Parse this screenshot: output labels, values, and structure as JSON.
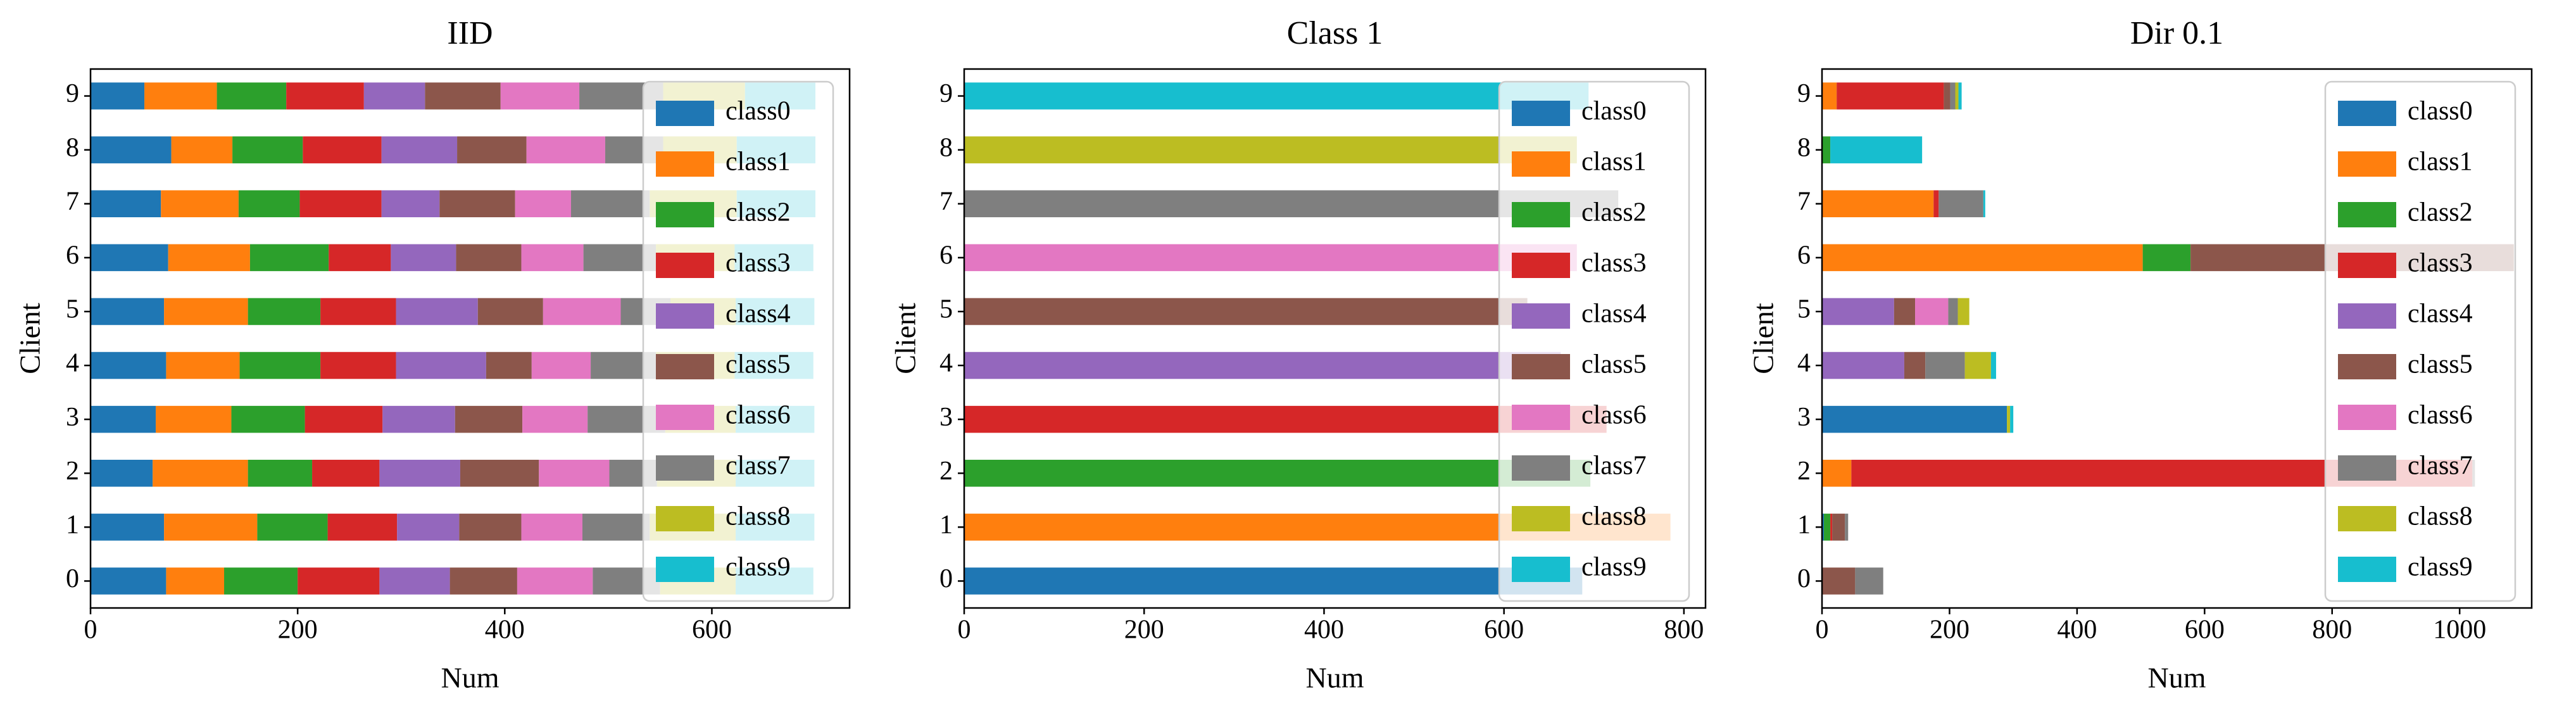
{
  "chart_data": [
    {
      "type": "bar",
      "orientation": "horizontal",
      "stacked": true,
      "title": "IID",
      "xlabel": "Num",
      "ylabel": "Client",
      "categories": [
        "0",
        "1",
        "2",
        "3",
        "4",
        "5",
        "6",
        "7",
        "8",
        "9"
      ],
      "xlim": [
        0,
        733
      ],
      "xticks": [
        0,
        200,
        400,
        600
      ],
      "legend": "upper right",
      "series": [
        {
          "name": "class0",
          "color": "#1f77b4",
          "values": [
            73,
            71,
            60,
            63,
            73,
            71,
            75,
            68,
            78,
            52
          ]
        },
        {
          "name": "class1",
          "color": "#ff7f0e",
          "values": [
            56,
            90,
            92,
            73,
            71,
            81,
            79,
            75,
            59,
            70
          ]
        },
        {
          "name": "class2",
          "color": "#2ca02c",
          "values": [
            71,
            68,
            62,
            71,
            78,
            70,
            76,
            59,
            68,
            67
          ]
        },
        {
          "name": "class3",
          "color": "#d62728",
          "values": [
            79,
            67,
            65,
            75,
            73,
            73,
            60,
            79,
            76,
            75
          ]
        },
        {
          "name": "class4",
          "color": "#9467bd",
          "values": [
            68,
            60,
            78,
            70,
            87,
            79,
            63,
            56,
            73,
            59
          ]
        },
        {
          "name": "class5",
          "color": "#8c564b",
          "values": [
            65,
            60,
            76,
            65,
            44,
            63,
            63,
            73,
            67,
            73
          ]
        },
        {
          "name": "class6",
          "color": "#e377c2",
          "values": [
            73,
            59,
            68,
            63,
            57,
            75,
            60,
            54,
            76,
            76
          ]
        },
        {
          "name": "class7",
          "color": "#7f7f7f",
          "values": [
            65,
            65,
            46,
            75,
            63,
            48,
            70,
            76,
            56,
            81
          ]
        },
        {
          "name": "class8",
          "color": "#bcbd22",
          "values": [
            73,
            83,
            76,
            68,
            76,
            63,
            76,
            84,
            71,
            79
          ]
        },
        {
          "name": "class9",
          "color": "#17becf",
          "values": [
            75,
            76,
            76,
            76,
            76,
            76,
            76,
            76,
            76,
            68
          ]
        }
      ]
    },
    {
      "type": "bar",
      "orientation": "horizontal",
      "stacked": true,
      "title": "Class 1",
      "xlabel": "Num",
      "ylabel": "Client",
      "categories": [
        "0",
        "1",
        "2",
        "3",
        "4",
        "5",
        "6",
        "7",
        "8",
        "9"
      ],
      "xlim": [
        0,
        824
      ],
      "xticks": [
        0,
        200,
        400,
        600,
        800
      ],
      "legend": "upper right",
      "series": [
        {
          "name": "class0",
          "color": "#1f77b4",
          "values": [
            687,
            0,
            0,
            0,
            0,
            0,
            0,
            0,
            0,
            0
          ]
        },
        {
          "name": "class1",
          "color": "#ff7f0e",
          "values": [
            0,
            785,
            0,
            0,
            0,
            0,
            0,
            0,
            0,
            0
          ]
        },
        {
          "name": "class2",
          "color": "#2ca02c",
          "values": [
            0,
            0,
            696,
            0,
            0,
            0,
            0,
            0,
            0,
            0
          ]
        },
        {
          "name": "class3",
          "color": "#d62728",
          "values": [
            0,
            0,
            0,
            714,
            0,
            0,
            0,
            0,
            0,
            0
          ]
        },
        {
          "name": "class4",
          "color": "#9467bd",
          "values": [
            0,
            0,
            0,
            0,
            663,
            0,
            0,
            0,
            0,
            0
          ]
        },
        {
          "name": "class5",
          "color": "#8c564b",
          "values": [
            0,
            0,
            0,
            0,
            0,
            626,
            0,
            0,
            0,
            0
          ]
        },
        {
          "name": "class6",
          "color": "#e377c2",
          "values": [
            0,
            0,
            0,
            0,
            0,
            0,
            681,
            0,
            0,
            0
          ]
        },
        {
          "name": "class7",
          "color": "#7f7f7f",
          "values": [
            0,
            0,
            0,
            0,
            0,
            0,
            0,
            727,
            0,
            0
          ]
        },
        {
          "name": "class8",
          "color": "#bcbd22",
          "values": [
            0,
            0,
            0,
            0,
            0,
            0,
            0,
            0,
            681,
            0
          ]
        },
        {
          "name": "class9",
          "color": "#17becf",
          "values": [
            0,
            0,
            0,
            0,
            0,
            0,
            0,
            0,
            0,
            694
          ]
        }
      ]
    },
    {
      "type": "bar",
      "orientation": "horizontal",
      "stacked": true,
      "title": "Dir 0.1",
      "xlabel": "Num",
      "ylabel": "Client",
      "categories": [
        "0",
        "1",
        "2",
        "3",
        "4",
        "5",
        "6",
        "7",
        "8",
        "9"
      ],
      "xlim": [
        0,
        1113
      ],
      "xticks": [
        0,
        200,
        400,
        600,
        800,
        1000
      ],
      "legend": "upper right",
      "series": [
        {
          "name": "class0",
          "color": "#1f77b4",
          "values": [
            0,
            3,
            0,
            290,
            0,
            0,
            0,
            0,
            0,
            0
          ]
        },
        {
          "name": "class1",
          "color": "#ff7f0e",
          "values": [
            0,
            0,
            46,
            0,
            0,
            0,
            503,
            175,
            0,
            23
          ]
        },
        {
          "name": "class2",
          "color": "#2ca02c",
          "values": [
            0,
            10,
            0,
            0,
            0,
            0,
            75,
            0,
            13,
            0
          ]
        },
        {
          "name": "class3",
          "color": "#d62728",
          "values": [
            0,
            3,
            974,
            0,
            0,
            0,
            0,
            8,
            0,
            168
          ]
        },
        {
          "name": "class4",
          "color": "#9467bd",
          "values": [
            0,
            0,
            0,
            0,
            129,
            113,
            0,
            0,
            0,
            0
          ]
        },
        {
          "name": "class5",
          "color": "#8c564b",
          "values": [
            52,
            20,
            0,
            0,
            33,
            33,
            507,
            0,
            0,
            10
          ]
        },
        {
          "name": "class6",
          "color": "#e377c2",
          "values": [
            0,
            0,
            0,
            0,
            0,
            52,
            0,
            0,
            0,
            0
          ]
        },
        {
          "name": "class7",
          "color": "#7f7f7f",
          "values": [
            44,
            5,
            4,
            0,
            62,
            15,
            0,
            70,
            0,
            8
          ]
        },
        {
          "name": "class8",
          "color": "#bcbd22",
          "values": [
            0,
            0,
            0,
            5,
            41,
            18,
            0,
            0,
            0,
            5
          ]
        },
        {
          "name": "class9",
          "color": "#17becf",
          "values": [
            0,
            0,
            0,
            5,
            8,
            0,
            0,
            3,
            144,
            5
          ]
        }
      ]
    }
  ]
}
